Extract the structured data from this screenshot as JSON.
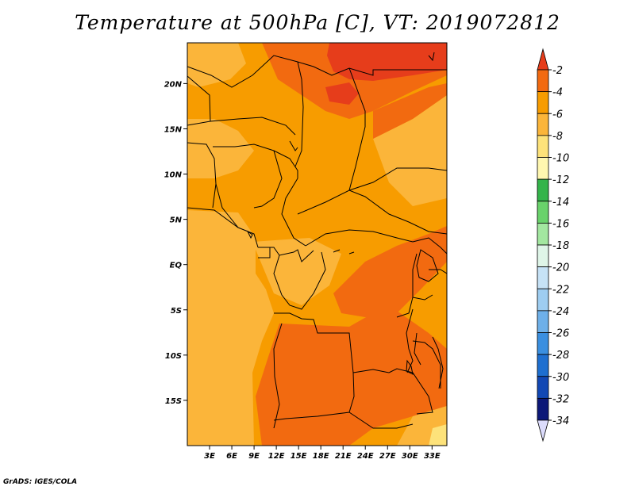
{
  "title": "Temperature at 500hPa [C], VT: 2019072812",
  "credit": "GrADS: IGES/COLA",
  "map": {
    "lon_labels": [
      "3E",
      "6E",
      "9E",
      "12E",
      "15E",
      "18E",
      "21E",
      "24E",
      "27E",
      "30E",
      "33E"
    ],
    "lat_labels": [
      "20N",
      "15N",
      "10N",
      "5N",
      "EQ",
      "5S",
      "10S",
      "15S"
    ],
    "lon_range": [
      0,
      35
    ],
    "lat_range": [
      -20,
      24.5
    ]
  },
  "colorbar": {
    "levels": [
      "-2",
      "-4",
      "-6",
      "-8",
      "-10",
      "-12",
      "-14",
      "-16",
      "-18",
      "-20",
      "-22",
      "-24",
      "-26",
      "-28",
      "-30",
      "-32",
      "-34"
    ],
    "colors": [
      "#e63d1b",
      "#f26a10",
      "#f79c00",
      "#fbb53a",
      "#fde27a",
      "#fff7b0",
      "#34b44a",
      "#69d26b",
      "#a3e7a0",
      "#dff5e8",
      "#c6e2f6",
      "#9ecdf1",
      "#6eb0e9",
      "#3a8fe0",
      "#1e6fd0",
      "#1248b4",
      "#0c1878",
      "#dcdcfc"
    ]
  }
}
